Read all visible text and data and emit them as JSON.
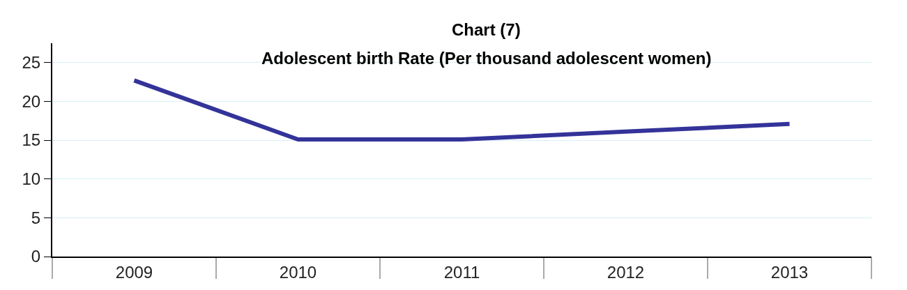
{
  "chart_data": {
    "type": "line",
    "title": "Chart (7)",
    "subtitle": "Adolescent birth Rate (Per thousand adolescent women)",
    "categories": [
      "2009",
      "2010",
      "2011",
      "2012",
      "2013"
    ],
    "series": [
      {
        "color": "#333399",
        "values": [
          22.7,
          15.1,
          15.1,
          16.1,
          17.1
        ]
      }
    ],
    "ylim": [
      0,
      27.5
    ],
    "yticks": [
      0,
      5,
      10,
      15,
      20,
      25
    ],
    "grid": "y",
    "marker": "none",
    "line_style": "solid"
  }
}
